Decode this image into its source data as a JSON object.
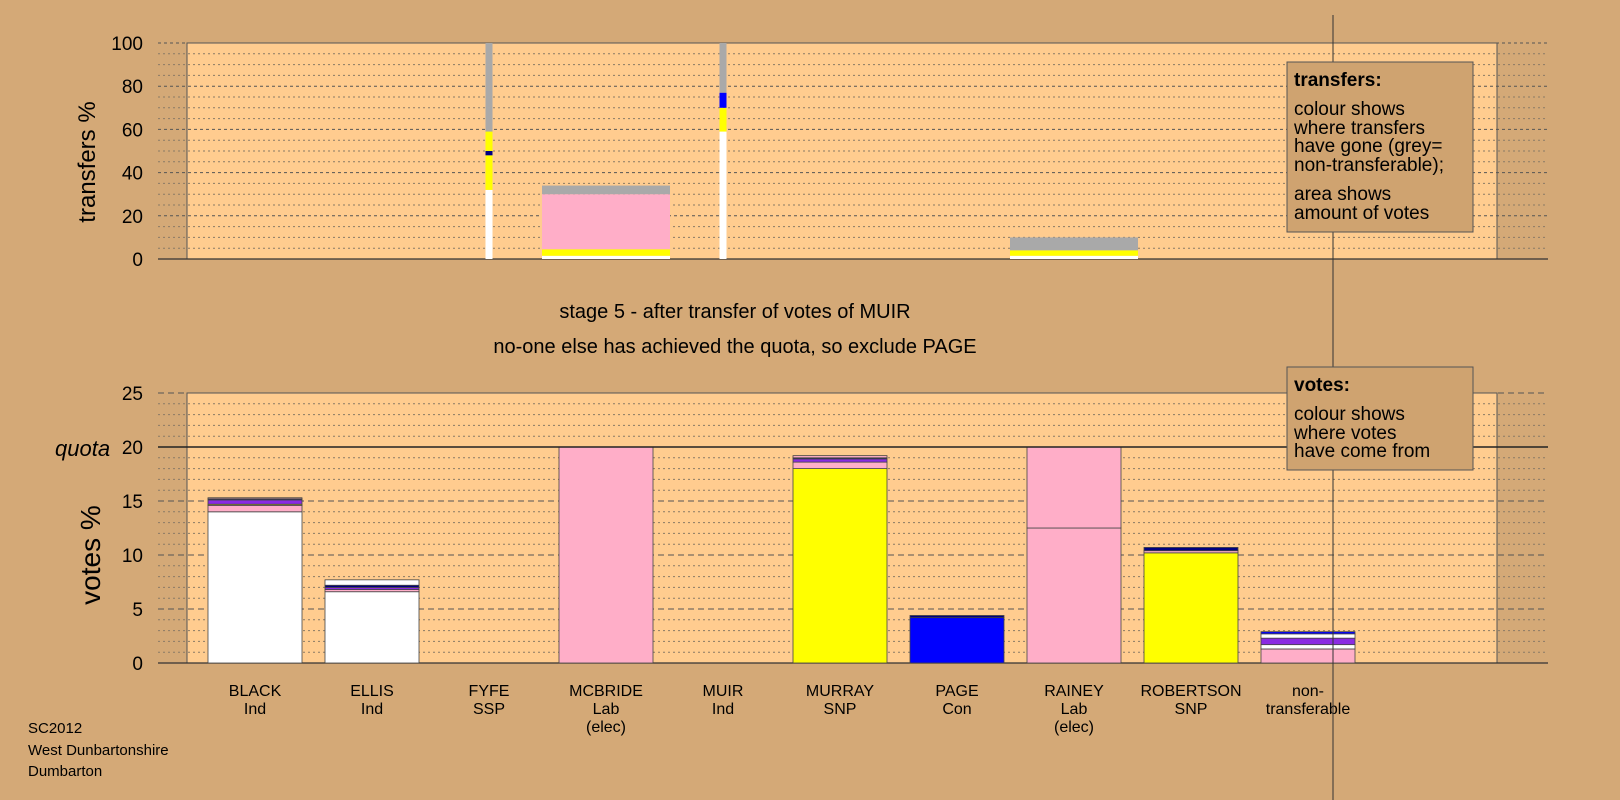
{
  "colors": {
    "page_bg": "#d4a977",
    "plot_bg": "#ffcc8f",
    "legend_bg": "#cfa370",
    "white": "#ffffff",
    "pink": "#ffaec8",
    "yellow": "#ffff00",
    "blue": "#0000ff",
    "purple": "#8a2be2",
    "navy": "#000080",
    "grey": "#a9a9a9"
  },
  "stage": {
    "line1": "stage 5 - after transfer of votes of MUIR",
    "line2": "no-one else has achieved the quota, so exclude PAGE"
  },
  "footer": [
    "SC2012",
    "West Dunbartonshire",
    "Dumbarton"
  ],
  "legends": {
    "transfers": {
      "title": "transfers:",
      "para1": [
        "colour shows",
        "where transfers",
        "have gone (grey=",
        "non-transferable);"
      ],
      "para2": [
        "area shows",
        "amount of votes"
      ]
    },
    "votes": {
      "title": "votes:",
      "para1": [
        "colour shows",
        "where votes",
        "have come from"
      ]
    }
  },
  "chart_data": [
    {
      "type": "bar",
      "name": "transfers",
      "ylabel": "transfers %",
      "ylim": [
        0,
        100
      ],
      "yticks": [
        0,
        20,
        40,
        60,
        80,
        100
      ],
      "columns": [
        {
          "candidate": "FYFE",
          "kind": "line",
          "segments": [
            {
              "color": "white",
              "from": 0,
              "to": 32
            },
            {
              "color": "yellow",
              "from": 32,
              "to": 48
            },
            {
              "color": "navy",
              "from": 48,
              "to": 50
            },
            {
              "color": "yellow",
              "from": 50,
              "to": 59
            },
            {
              "color": "grey",
              "from": 59,
              "to": 100
            }
          ]
        },
        {
          "candidate": "MCBRIDE",
          "kind": "bar",
          "segments": [
            {
              "color": "white",
              "from": 0,
              "to": 1.5
            },
            {
              "color": "yellow",
              "from": 1.5,
              "to": 4.5
            },
            {
              "color": "pink",
              "from": 4.5,
              "to": 30
            },
            {
              "color": "grey",
              "from": 30,
              "to": 34
            }
          ]
        },
        {
          "candidate": "MUIR",
          "kind": "line",
          "segments": [
            {
              "color": "white",
              "from": 0,
              "to": 59
            },
            {
              "color": "yellow",
              "from": 59,
              "to": 70
            },
            {
              "color": "blue",
              "from": 70,
              "to": 77
            },
            {
              "color": "grey",
              "from": 77,
              "to": 100
            }
          ]
        },
        {
          "candidate": "RAINEY",
          "kind": "bar",
          "segments": [
            {
              "color": "white",
              "from": 0,
              "to": 1.5
            },
            {
              "color": "yellow",
              "from": 1.5,
              "to": 4
            },
            {
              "color": "grey",
              "from": 4,
              "to": 10
            }
          ]
        }
      ]
    },
    {
      "type": "bar",
      "name": "votes",
      "ylabel": "votes %",
      "ylim": [
        0,
        25
      ],
      "yticks": [
        0,
        5,
        10,
        15,
        20,
        25
      ],
      "quota": 20,
      "quota_label": "quota",
      "categories": [
        {
          "name": "BLACK",
          "party": "Ind",
          "note": ""
        },
        {
          "name": "ELLIS",
          "party": "Ind",
          "note": ""
        },
        {
          "name": "FYFE",
          "party": "SSP",
          "note": ""
        },
        {
          "name": "MCBRIDE",
          "party": "Lab",
          "note": "(elec)"
        },
        {
          "name": "MUIR",
          "party": "Ind",
          "note": ""
        },
        {
          "name": "MURRAY",
          "party": "SNP",
          "note": ""
        },
        {
          "name": "PAGE",
          "party": "Con",
          "note": ""
        },
        {
          "name": "RAINEY",
          "party": "Lab",
          "note": "(elec)"
        },
        {
          "name": "ROBERTSON",
          "party": "SNP",
          "note": ""
        },
        {
          "name": "non-",
          "party": "transferable",
          "note": ""
        }
      ],
      "stacks": [
        [
          {
            "color": "white",
            "v": 14.0
          },
          {
            "color": "pink",
            "v": 0.6
          },
          {
            "color": "yellow",
            "v": 0.1
          },
          {
            "color": "purple",
            "v": 0.4
          },
          {
            "color": "navy",
            "v": 0.1
          },
          {
            "color": "pink",
            "v": 0.1
          }
        ],
        [
          {
            "color": "white",
            "v": 6.6
          },
          {
            "color": "pink",
            "v": 0.2
          },
          {
            "color": "purple",
            "v": 0.2
          },
          {
            "color": "navy",
            "v": 0.2
          },
          {
            "color": "white",
            "v": 0.5
          }
        ],
        [],
        [
          {
            "color": "pink",
            "v": 20.0
          }
        ],
        [],
        [
          {
            "color": "yellow",
            "v": 18.0
          },
          {
            "color": "pink",
            "v": 0.6
          },
          {
            "color": "purple",
            "v": 0.3
          },
          {
            "color": "navy",
            "v": 0.1
          },
          {
            "color": "pink",
            "v": 0.2
          }
        ],
        [
          {
            "color": "blue",
            "v": 4.2
          },
          {
            "color": "navy",
            "v": 0.2
          }
        ],
        [
          {
            "color": "pink",
            "v": 12.5
          },
          {
            "color": "pink",
            "v": 7.5
          }
        ],
        [
          {
            "color": "yellow",
            "v": 10.2
          },
          {
            "color": "pink",
            "v": 0.2
          },
          {
            "color": "navy",
            "v": 0.3
          }
        ],
        [
          {
            "color": "pink",
            "v": 1.3
          },
          {
            "color": "white",
            "v": 0.4
          },
          {
            "color": "purple",
            "v": 0.6
          },
          {
            "color": "white",
            "v": 0.4
          },
          {
            "color": "blue",
            "v": 0.2
          }
        ]
      ]
    }
  ]
}
